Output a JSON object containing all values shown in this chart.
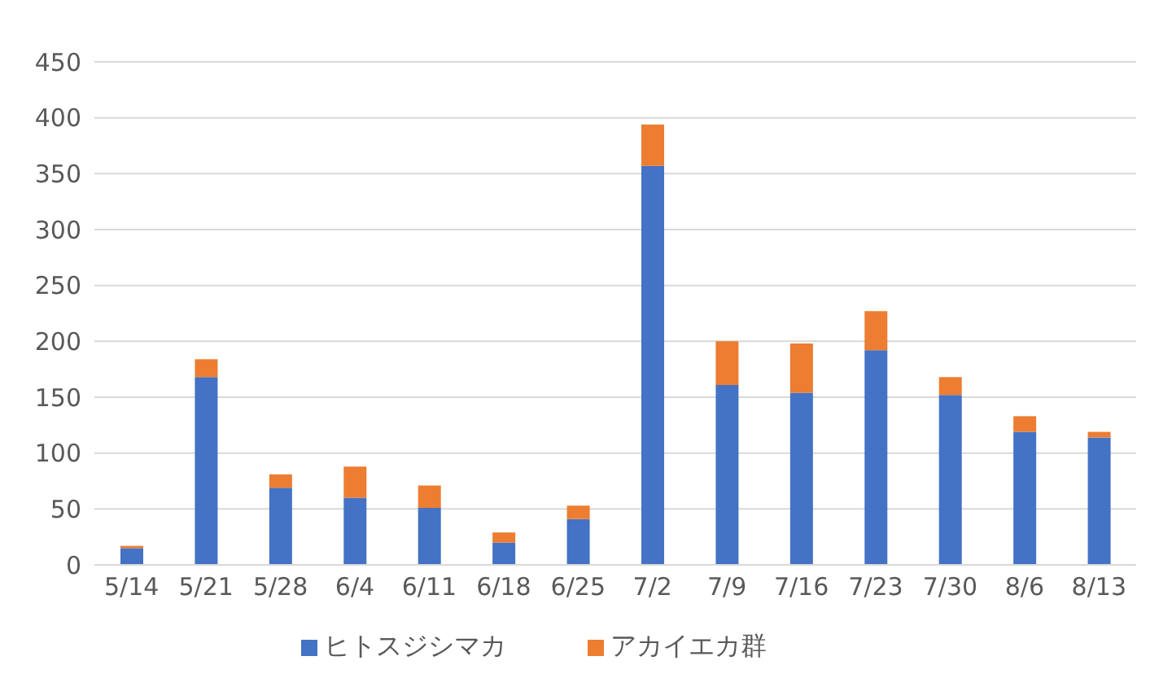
{
  "chart_data": {
    "type": "bar",
    "stacked": true,
    "categories": [
      "5/14",
      "5/21",
      "5/28",
      "6/4",
      "6/11",
      "6/18",
      "6/25",
      "7/2",
      "7/9",
      "7/16",
      "7/23",
      "7/30",
      "8/6",
      "8/13"
    ],
    "series": [
      {
        "name": "ヒトスジシマカ",
        "color": "#4472c4",
        "values": [
          15,
          168,
          69,
          60,
          51,
          20,
          41,
          357,
          161,
          154,
          192,
          152,
          119,
          114
        ]
      },
      {
        "name": "アカイエカ群",
        "color": "#ed7d31",
        "values": [
          2,
          16,
          12,
          28,
          20,
          9,
          12,
          37,
          39,
          44,
          35,
          16,
          14,
          5
        ]
      }
    ],
    "ylim": [
      0,
      450
    ],
    "yticks": [
      0,
      50,
      100,
      150,
      200,
      250,
      300,
      350,
      400,
      450
    ],
    "grid": "y",
    "legend": "bottom"
  }
}
